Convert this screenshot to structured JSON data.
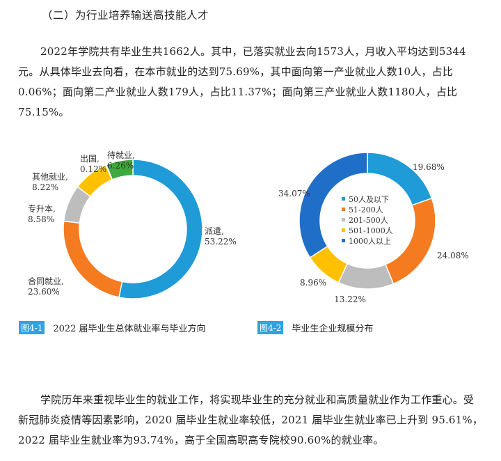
{
  "heading": "（二）为行业培养输送高技能人才",
  "para1": "2022年学院共有毕业生共1662人。其中，已落实就业去向1573人，月收入平均达到5344元。从具体毕业去向看，在本市就业的达到75.69%，其中面向第一产业就业人数10人，占比0.06%；面向第二产业就业人数179人，占比11.37%；面向第三产业就业人数1180人，占比75.15%。",
  "para2": "学院历年来重视毕业生的就业工作，将实现毕业生的充分就业和高质量就业作为工作重心。受新冠肺炎疫情等因素影响，2020 届毕业生就业率较低，2021 届毕业生就业率已上升到 95.61%，2022 届毕业生就业率为93.74%，高于全国高职高专院校90.60%的就业率。",
  "captions": {
    "fig1_tag": "图4-1",
    "fig1_text": "2022 届毕业生总体就业率与毕业方向",
    "fig2_tag": "图4-2",
    "fig2_text": "毕业生企业规模分布"
  },
  "chart_data": [
    {
      "type": "pie",
      "categories": [
        "派遣",
        "合同就业",
        "专升本",
        "其他就业",
        "出国",
        "待就业"
      ],
      "values": [
        53.22,
        23.6,
        8.58,
        8.22,
        0.12,
        6.26
      ],
      "labels": [
        "派遣,53.22%",
        "合同就业,23.60%",
        "专升本,8.58%",
        "其他就业,8.22%",
        "出国,0.12%",
        "待就业,6.26%"
      ],
      "colors": [
        "#1f9bd7",
        "#f47b20",
        "#bdbdbd",
        "#ffc000",
        "#4472c4",
        "#3caa3c"
      ],
      "title": "",
      "donut": true
    },
    {
      "type": "pie",
      "categories": [
        "50人及以下",
        "51-200人",
        "201-500人",
        "501-1000人",
        "1000人以上"
      ],
      "values": [
        19.68,
        24.08,
        13.22,
        8.96,
        34.07
      ],
      "labels": [
        "19.68%",
        "24.08%",
        "13.22%",
        "8.96%",
        "34.07%"
      ],
      "colors": [
        "#1f9bd7",
        "#f47b20",
        "#bdbdbd",
        "#ffc000",
        "#1f6fc8"
      ],
      "title": "",
      "donut": true,
      "legend": "center"
    }
  ]
}
